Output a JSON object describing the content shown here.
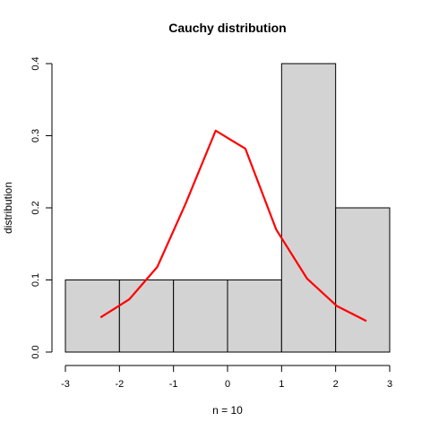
{
  "chart_data": {
    "type": "bar",
    "title": "Cauchy distribution",
    "xlabel": "n = 10",
    "ylabel": "distribution",
    "xlim": [
      -3,
      3
    ],
    "ylim": [
      0,
      0.4
    ],
    "x_ticks": [
      "-3",
      "-2",
      "-1",
      "0",
      "1",
      "2",
      "3"
    ],
    "y_ticks": [
      "0.0",
      "0.1",
      "0.2",
      "0.3",
      "0.4"
    ],
    "grid": false,
    "legend": "none",
    "bar_color": "#d3d3d3",
    "line_color": "#ff0000",
    "histogram": {
      "bins": [
        [
          -3,
          -2
        ],
        [
          -2,
          -1
        ],
        [
          -1,
          0
        ],
        [
          0,
          1
        ],
        [
          1,
          2
        ],
        [
          2,
          3
        ]
      ],
      "values": [
        0.1,
        0.1,
        0.1,
        0.1,
        0.4,
        0.2
      ]
    },
    "series": [
      {
        "type": "line",
        "x": [
          -2.35,
          -1.82,
          -1.3,
          -0.78,
          -0.22,
          0.33,
          0.9,
          1.47,
          2.02,
          2.57
        ],
        "y": [
          0.048,
          0.073,
          0.118,
          0.205,
          0.307,
          0.282,
          0.17,
          0.102,
          0.064,
          0.043
        ]
      }
    ]
  }
}
